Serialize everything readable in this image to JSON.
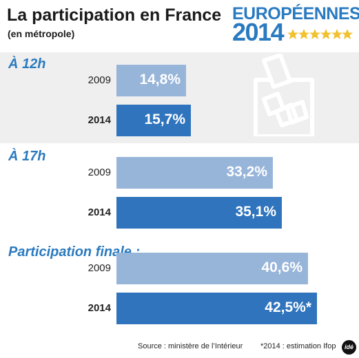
{
  "header": {
    "title": "La participation en France",
    "subtitle": "(en métropole)"
  },
  "logo": {
    "line1": "EUROPÉENNES",
    "line2": "2014"
  },
  "chart_data": {
    "type": "bar",
    "orientation": "horizontal",
    "xlim": [
      0,
      50
    ],
    "groups": [
      {
        "label": "À 12h",
        "rows": [
          {
            "year": "2009",
            "value": 14.8,
            "value_label": "14,8%"
          },
          {
            "year": "2014",
            "value": 15.7,
            "value_label": "15,7%"
          }
        ]
      },
      {
        "label": "À 17h",
        "rows": [
          {
            "year": "2009",
            "value": 33.2,
            "value_label": "33,2%"
          },
          {
            "year": "2014",
            "value": 35.1,
            "value_label": "35,1%"
          }
        ]
      },
      {
        "label": "Participation finale :",
        "rows": [
          {
            "year": "2009",
            "value": 40.6,
            "value_label": "40,6%"
          },
          {
            "year": "2014",
            "value": 42.5,
            "value_label": "42,5%*"
          }
        ]
      }
    ],
    "colors": {
      "2009": "#97b4d9",
      "2014": "#2f74bd"
    }
  },
  "footer": {
    "source": "Source : ministère de l’Intérieur",
    "note": "*2014 : estimation Ifop",
    "badge": "idé"
  }
}
